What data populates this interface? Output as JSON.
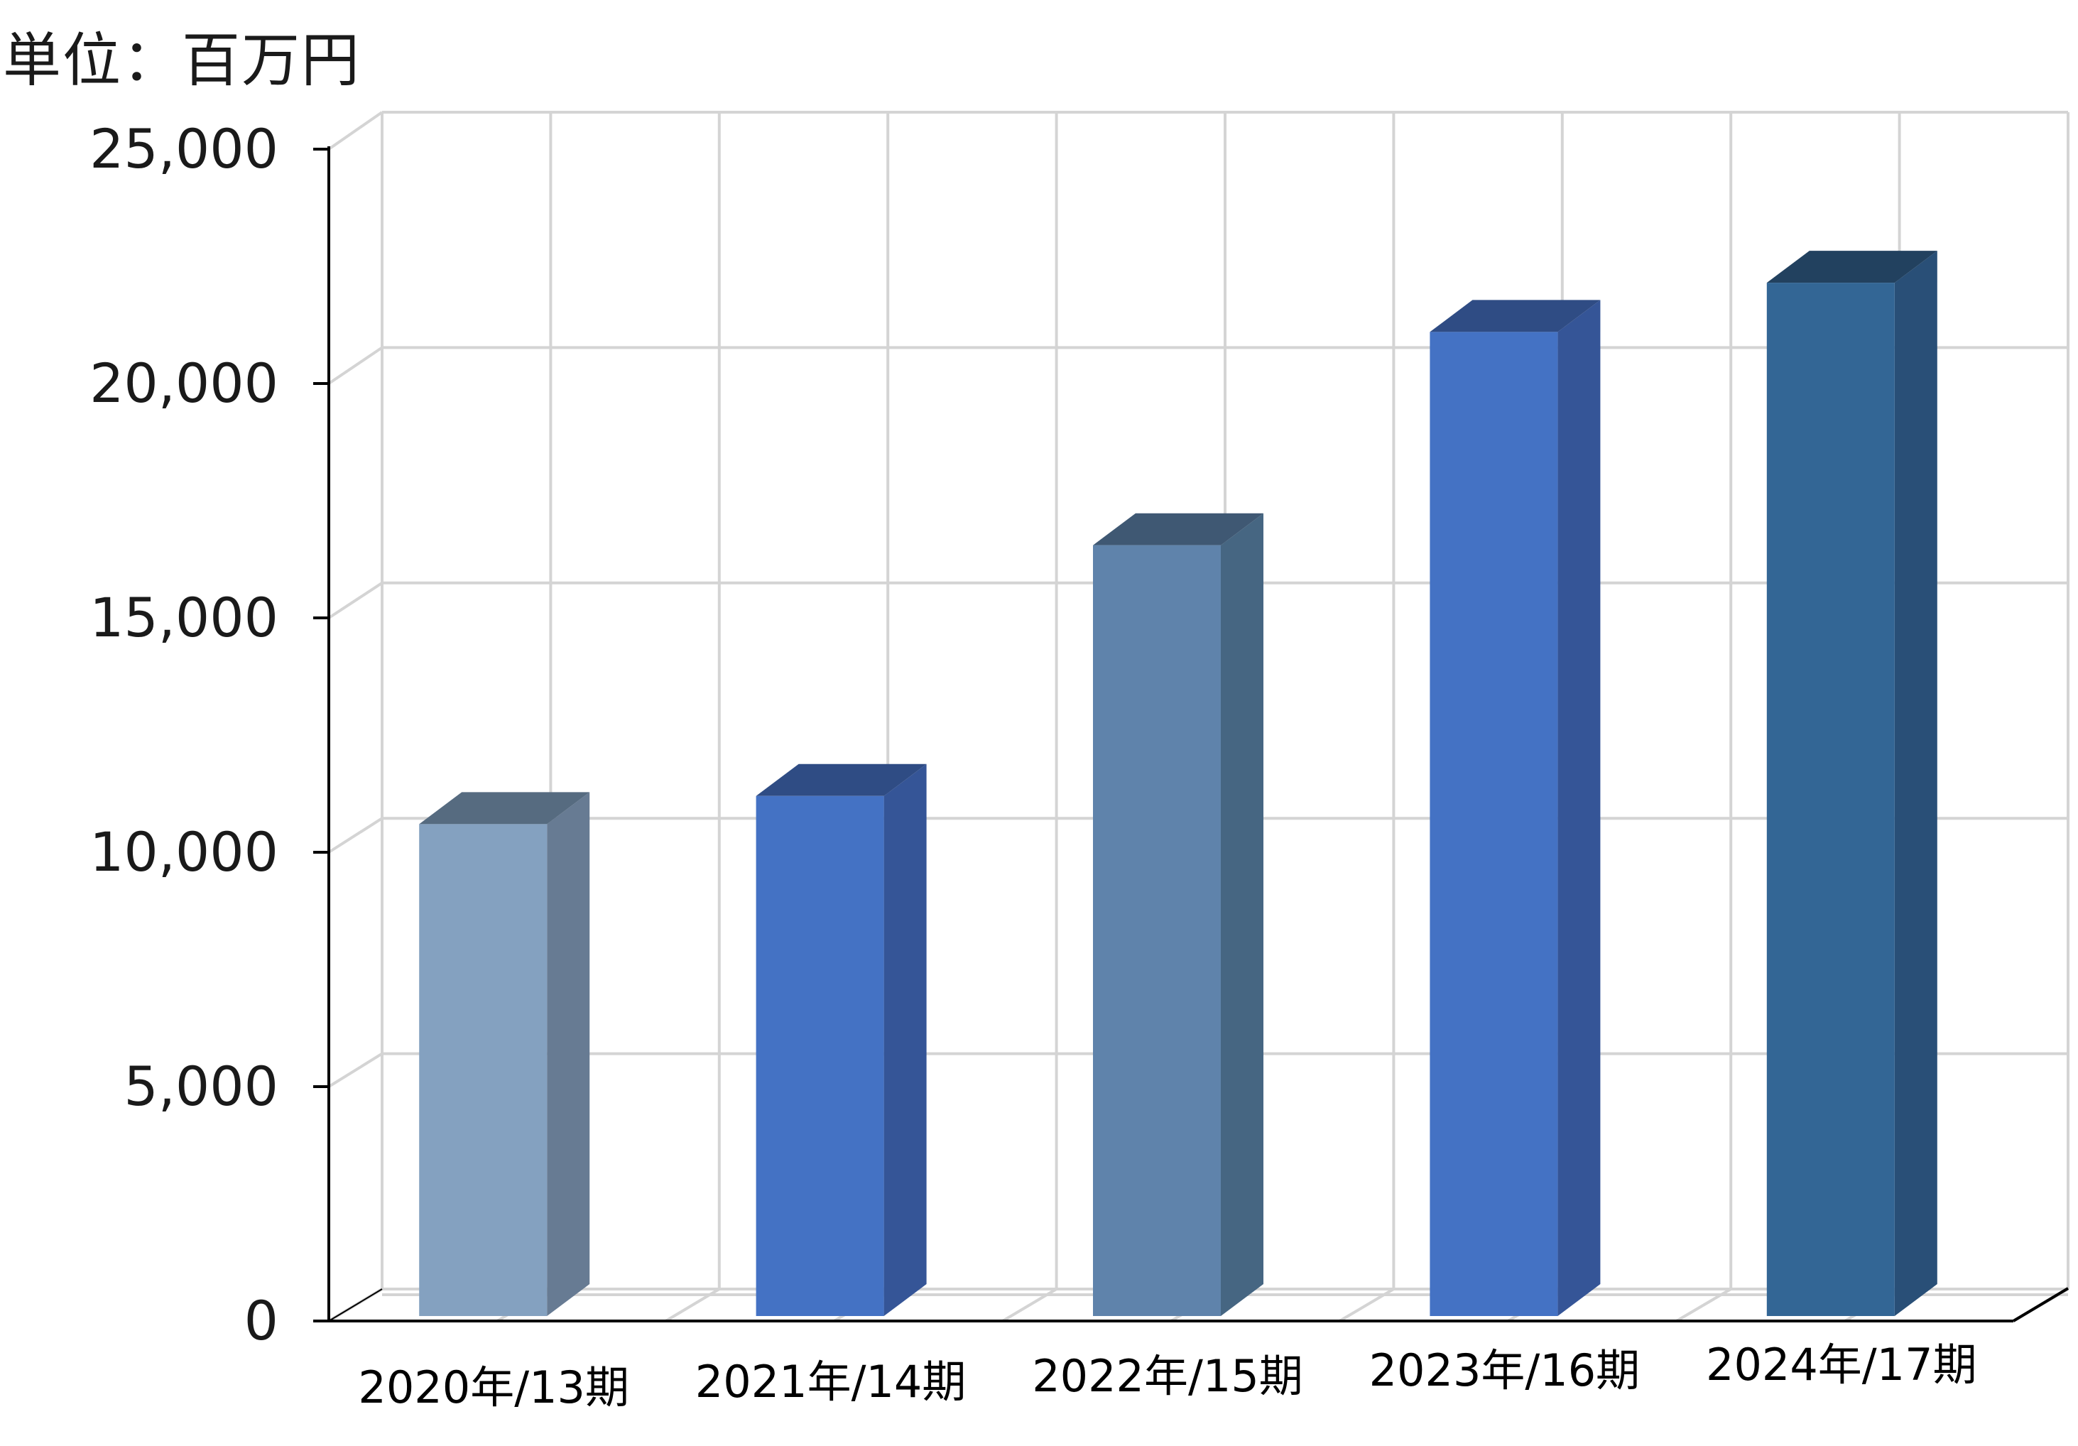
{
  "chart_data": {
    "type": "bar",
    "unit_label": "単位：百万円",
    "categories": [
      "2020年/13期",
      "2021年/14期",
      "2022年/15期",
      "2023年/16期",
      "2024年/17期"
    ],
    "values": [
      10600,
      11200,
      16550,
      21100,
      22150
    ],
    "yticks": [
      "0",
      "5,000",
      "10,000",
      "15,000",
      "20,000",
      "25,000"
    ],
    "ytick_values": [
      0,
      5000,
      10000,
      15000,
      20000,
      25000
    ],
    "ylim": [
      0,
      25000
    ],
    "grid": true,
    "bar_colors": [
      {
        "front": "#84a1c0",
        "side": "#677b93",
        "top": "#566b80"
      },
      {
        "front": "#4472c4",
        "side": "#355597",
        "top": "#2f4c84"
      },
      {
        "front": "#5f83ab",
        "side": "#466682",
        "top": "#3f5873"
      },
      {
        "front": "#4472c4",
        "side": "#355597",
        "top": "#2f4c84"
      },
      {
        "front": "#336695",
        "side": "#294f77",
        "top": "#22415f"
      }
    ]
  }
}
